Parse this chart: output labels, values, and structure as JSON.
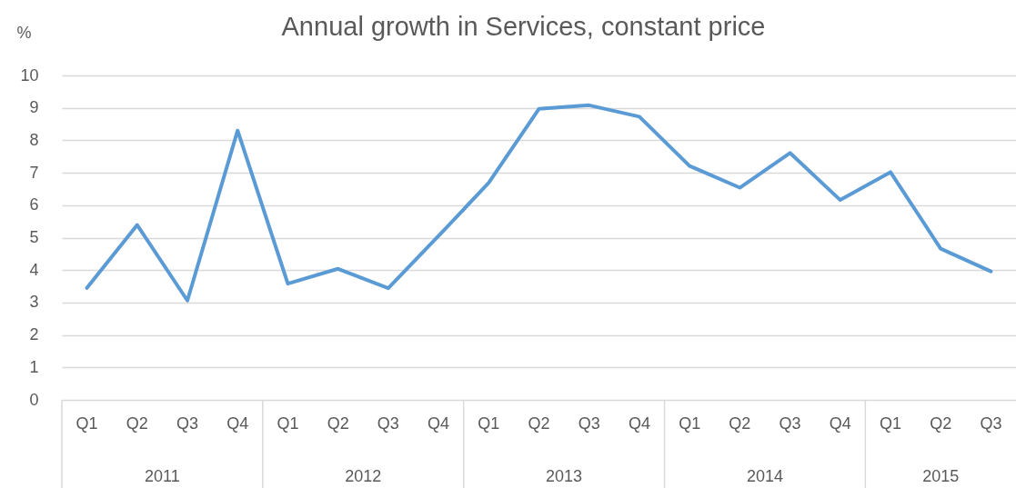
{
  "chart_data": {
    "type": "line",
    "title": "Annual growth in Services, constant price",
    "ylabel": "%",
    "categories": [
      "Q1",
      "Q2",
      "Q3",
      "Q4",
      "Q1",
      "Q2",
      "Q3",
      "Q4",
      "Q1",
      "Q2",
      "Q3",
      "Q4",
      "Q1",
      "Q2",
      "Q3",
      "Q4",
      "Q1",
      "Q2",
      "Q3"
    ],
    "series": [
      {
        "color": "#5b9bd5",
        "values": [
          3.45,
          5.39,
          3.06,
          8.3,
          3.58,
          4.04,
          3.44,
          5.05,
          6.69,
          8.97,
          9.08,
          8.73,
          7.21,
          6.54,
          7.61,
          6.16,
          7.02,
          4.66,
          3.96
        ]
      }
    ],
    "annotations": [
      "2011",
      "2012",
      "2013",
      "2014",
      "2015"
    ],
    "ylim": [
      0,
      10
    ],
    "yticks": [
      0,
      1,
      2,
      3,
      4,
      5,
      6,
      7,
      8,
      9,
      10
    ],
    "grid": "y",
    "marker": "none",
    "line_style": "solid"
  }
}
